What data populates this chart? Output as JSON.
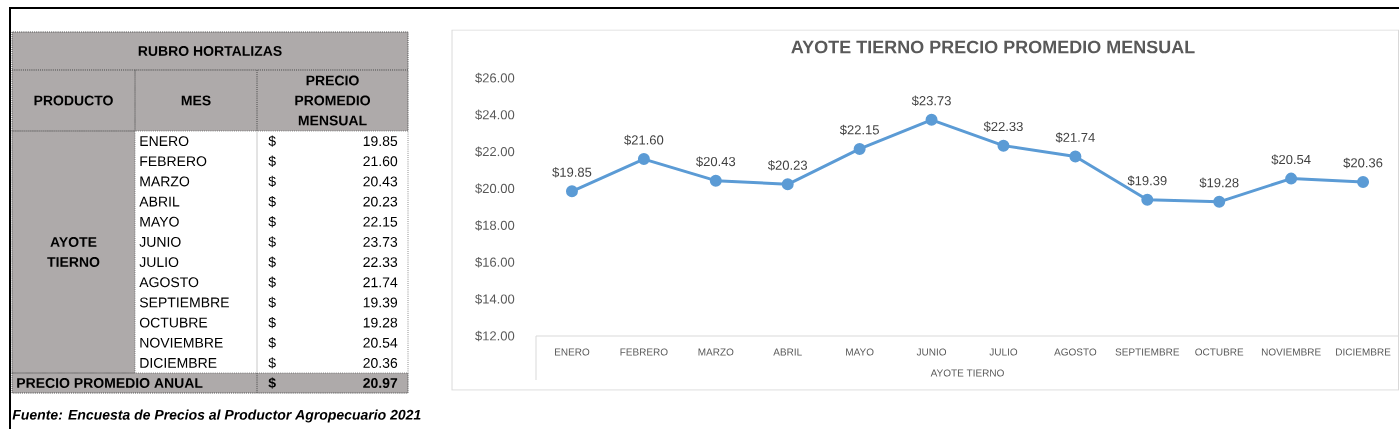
{
  "chart_data": [
    {
      "type": "other",
      "title": "RUBRO HORTALIZAS",
      "categories": [
        "ENERO",
        "FEBRERO",
        "MARZO",
        "ABRIL",
        "MAYO",
        "JUNIO",
        "JULIO",
        "AGOSTO",
        "SEPTIEMBRE",
        "OCTUBRE",
        "NOVIEMBRE",
        "DICIEMBRE"
      ],
      "value_labels": [
        "19.85",
        "21.60",
        "20.43",
        "20.23",
        "22.15",
        "23.73",
        "22.33",
        "21.74",
        "19.39",
        "19.28",
        "20.54",
        "20.36"
      ],
      "annotations": [
        "PRODUCTO",
        "MES",
        "PRECIO PROMEDIO MENSUAL",
        "AYOTE TIERNO",
        "$",
        "PRECIO PROMEDIO ANUAL",
        "20.97",
        "Fuente: Encuesta de Precios al Productor Agropecuario 2021"
      ]
    },
    {
      "type": "line",
      "title": "AYOTE TIERNO PRECIO PROMEDIO MENSUAL",
      "xlabel": "AYOTE TIERNO",
      "categories": [
        "ENERO",
        "FEBRERO",
        "MARZO",
        "ABRIL",
        "MAYO",
        "JUNIO",
        "JULIO",
        "AGOSTO",
        "SEPTIEMBRE",
        "OCTUBRE",
        "NOVIEMBRE",
        "DICIEMBRE"
      ],
      "values": [
        19.85,
        21.6,
        20.43,
        20.23,
        22.15,
        23.73,
        22.33,
        21.74,
        19.39,
        19.28,
        20.54,
        20.36
      ],
      "value_labels": [
        "$19.85",
        "$21.60",
        "$20.43",
        "$20.23",
        "$22.15",
        "$23.73",
        "$22.33",
        "$21.74",
        "$19.39",
        "$19.28",
        "$20.54",
        "$20.36"
      ],
      "color": "#5b9bd5",
      "ylim": [
        12,
        26
      ],
      "yticks": [
        {
          "value": 12,
          "label": "$12.00"
        },
        {
          "value": 14,
          "label": "$14.00"
        },
        {
          "value": 16,
          "label": "$16.00"
        },
        {
          "value": 18,
          "label": "$18.00"
        },
        {
          "value": 20,
          "label": "$20.00"
        },
        {
          "value": 22,
          "label": "$22.00"
        },
        {
          "value": 24,
          "label": "$24.00"
        },
        {
          "value": 26,
          "label": "$26.00"
        }
      ],
      "marker": "circle",
      "line_style": "solid",
      "grid": false
    }
  ]
}
